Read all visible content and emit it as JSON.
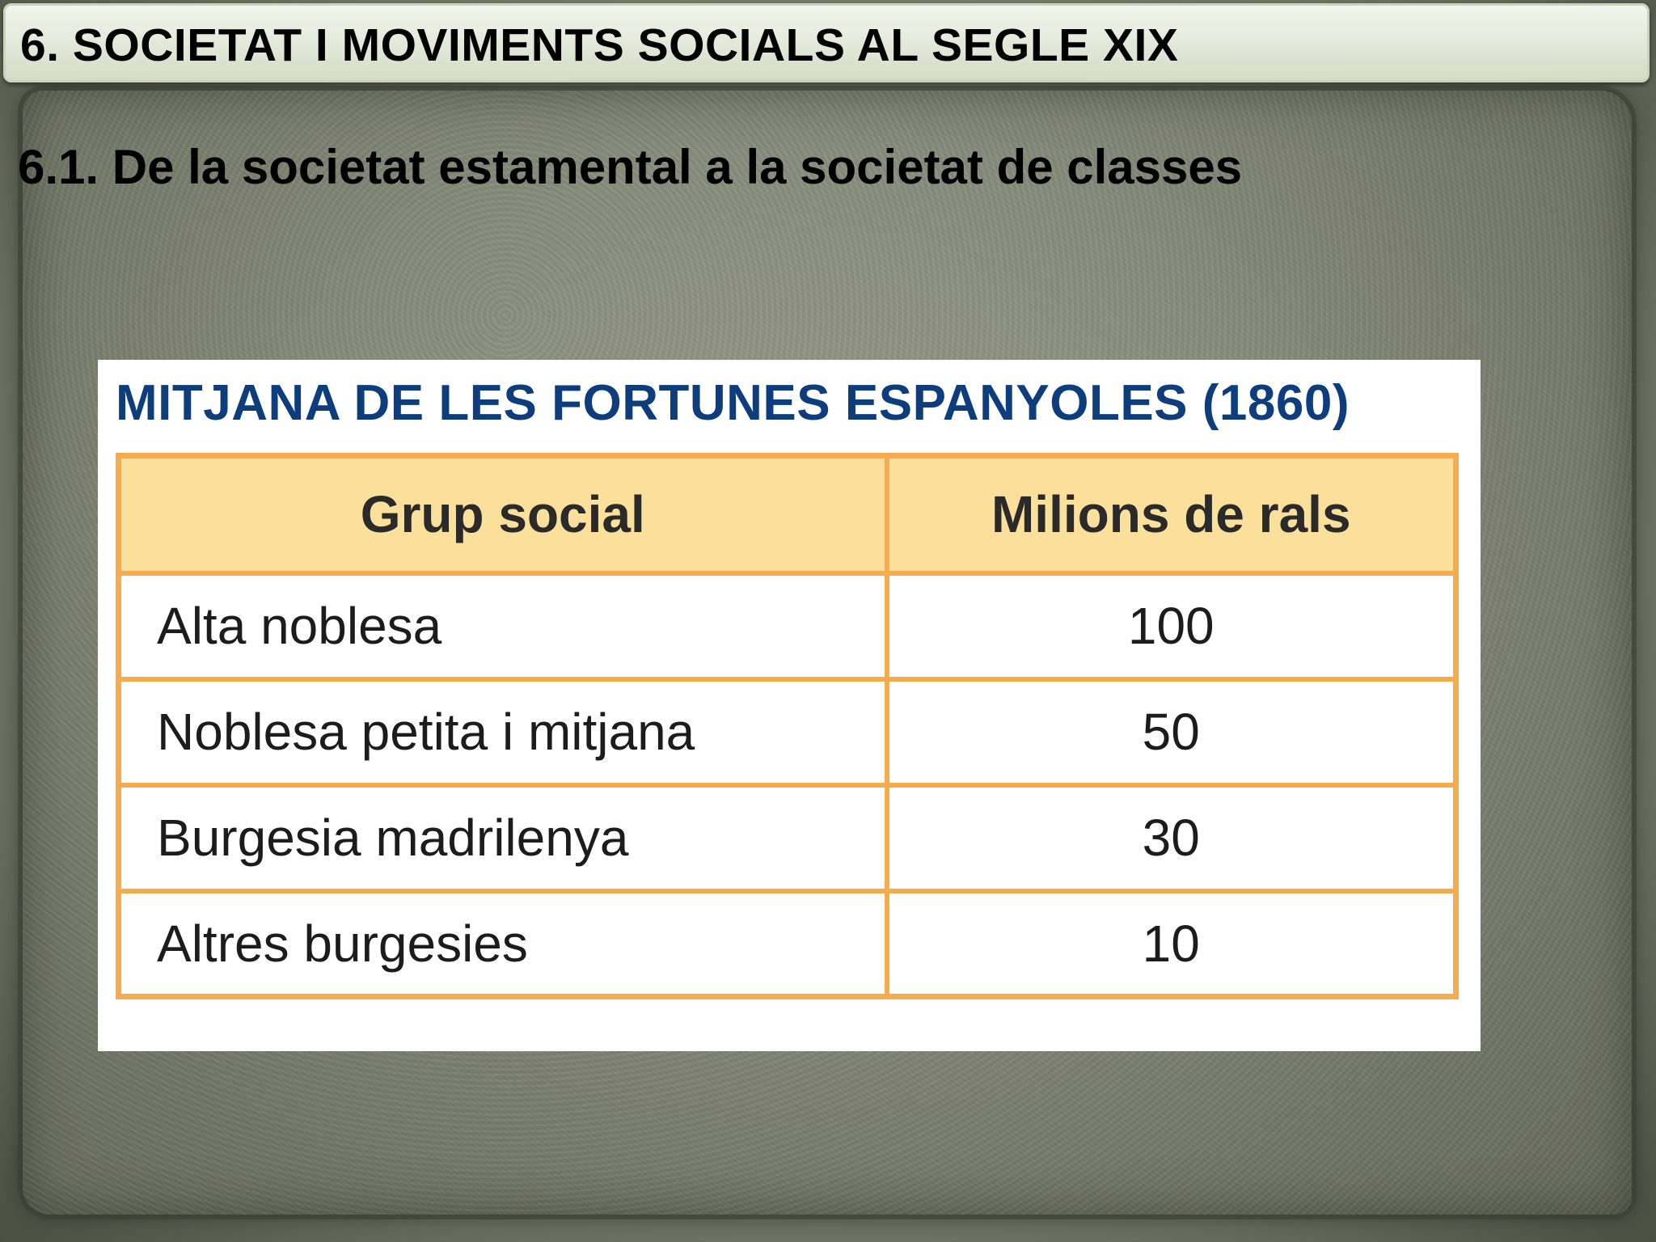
{
  "slide": {
    "title": "6. SOCIETAT I MOVIMENTS SOCIALS AL SEGLE XIX",
    "subtitle": "6.1. De la societat estamental a la societat de classes"
  },
  "table": {
    "heading": "MITJANA DE LES FORTUNES ESPANYOLES (1860)",
    "columns": [
      "Grup social",
      "Milions de rals"
    ],
    "rows": [
      {
        "group": "Alta noblesa",
        "value": "100"
      },
      {
        "group": "Noblesa petita i mitjana",
        "value": "50"
      },
      {
        "group": "Burgesia madrilenya",
        "value": "30"
      },
      {
        "group": "Altres burgesies",
        "value": "10"
      }
    ],
    "colors": {
      "heading": "#0d3d7d",
      "border": "#f6ab4e",
      "header_fill": "#fbe09c"
    }
  }
}
